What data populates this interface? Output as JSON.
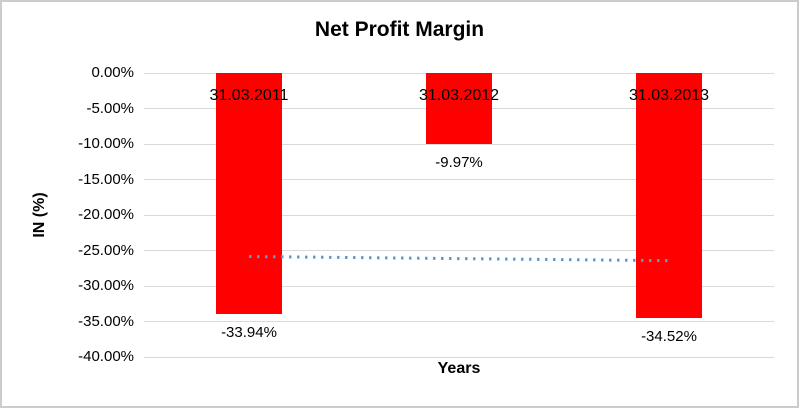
{
  "frame": {
    "background": "#ffffff",
    "border_color": "#cccccc"
  },
  "chart_data": {
    "type": "bar",
    "title": "Net Profit Margin",
    "xlabel": "Years",
    "ylabel": "IN (%)",
    "categories": [
      "31.03.2011",
      "31.03.2012",
      "31.03.2013"
    ],
    "values": [
      -33.94,
      -9.97,
      -34.52
    ],
    "data_labels": [
      "-33.94%",
      "-9.97%",
      "-34.52%"
    ],
    "bar_color": "#ff0000",
    "ylim": [
      -40,
      0
    ],
    "ytick_step": 5,
    "ytick_labels": [
      "0.00%",
      "-5.00%",
      "-10.00%",
      "-15.00%",
      "-20.00%",
      "-25.00%",
      "-30.00%",
      "-35.00%",
      "-40.00%"
    ],
    "grid": true,
    "gridline_color": "#d9d9d9",
    "legend": "none",
    "trendline": {
      "type": "linear",
      "style": "dotted",
      "color": "#5b9bd5",
      "start_value": -25.85,
      "end_value": -26.43
    }
  }
}
